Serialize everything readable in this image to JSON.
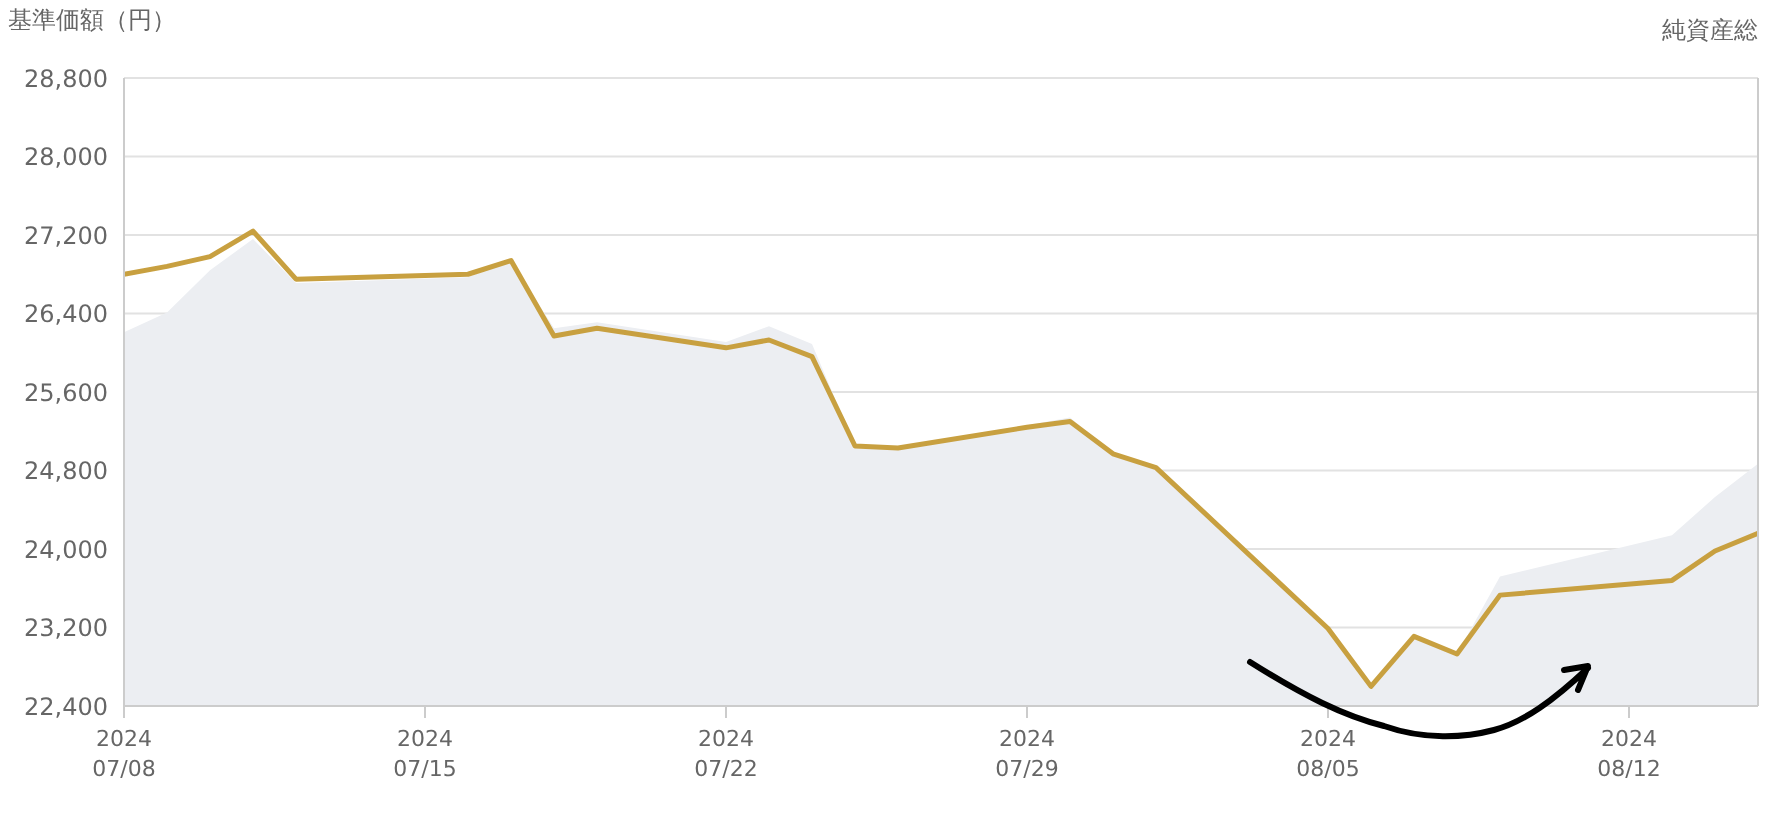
{
  "chart_data": {
    "type": "line",
    "ylabel": "基準価額（円）",
    "y2label": "純資産総",
    "x": [
      "2024-07-08",
      "2024-07-09",
      "2024-07-10",
      "2024-07-11",
      "2024-07-12",
      "2024-07-16",
      "2024-07-17",
      "2024-07-18",
      "2024-07-19",
      "2024-07-22",
      "2024-07-23",
      "2024-07-24",
      "2024-07-25",
      "2024-07-26",
      "2024-07-29",
      "2024-07-30",
      "2024-07-31",
      "2024-08-01",
      "2024-08-05",
      "2024-08-06",
      "2024-08-07",
      "2024-08-08",
      "2024-08-09",
      "2024-08-13",
      "2024-08-14",
      "2024-08-15"
    ],
    "series": [
      {
        "type": "area",
        "color": "#eceef2",
        "values": [
          26210,
          26410,
          26840,
          27160,
          26710,
          26770,
          26940,
          26250,
          26310,
          26110,
          26270,
          26090,
          25050,
          25030,
          25260,
          25340,
          24970,
          24830,
          23190,
          22600,
          23110,
          22930,
          23720,
          24140,
          24530,
          24870
        ]
      },
      {
        "color": "#c8a040",
        "values": [
          26800,
          26880,
          26980,
          27240,
          26750,
          26800,
          26940,
          26170,
          26250,
          26050,
          26130,
          25960,
          25050,
          25030,
          25240,
          25300,
          24970,
          24830,
          23190,
          22600,
          23110,
          22930,
          23530,
          23680,
          23980,
          24160
        ]
      }
    ],
    "xlim": [
      "2024-07-08",
      "2024-08-15"
    ],
    "xticks": [
      {
        "value": "2024-07-08",
        "label": "2024\n07/08"
      },
      {
        "value": "2024-07-15",
        "label": "2024\n07/15"
      },
      {
        "value": "2024-07-22",
        "label": "2024\n07/22"
      },
      {
        "value": "2024-07-29",
        "label": "2024\n07/29"
      },
      {
        "value": "2024-08-05",
        "label": "2024\n08/05"
      },
      {
        "value": "2024-08-12",
        "label": "2024\n08/12"
      }
    ],
    "ylim": [
      22400,
      28800
    ],
    "yticks": [
      {
        "value": 22400,
        "label": "22,400"
      },
      {
        "value": 23200,
        "label": "23,200"
      },
      {
        "value": 24000,
        "label": "24,000"
      },
      {
        "value": 24800,
        "label": "24,800"
      },
      {
        "value": 25600,
        "label": "25,600"
      },
      {
        "value": 26400,
        "label": "26,400"
      },
      {
        "value": 27200,
        "label": "27,200"
      },
      {
        "value": 28000,
        "label": "28,000"
      },
      {
        "value": 28800,
        "label": "28,800"
      }
    ],
    "grid": "y",
    "marker": "none",
    "line_style": "solid",
    "legend": false
  }
}
